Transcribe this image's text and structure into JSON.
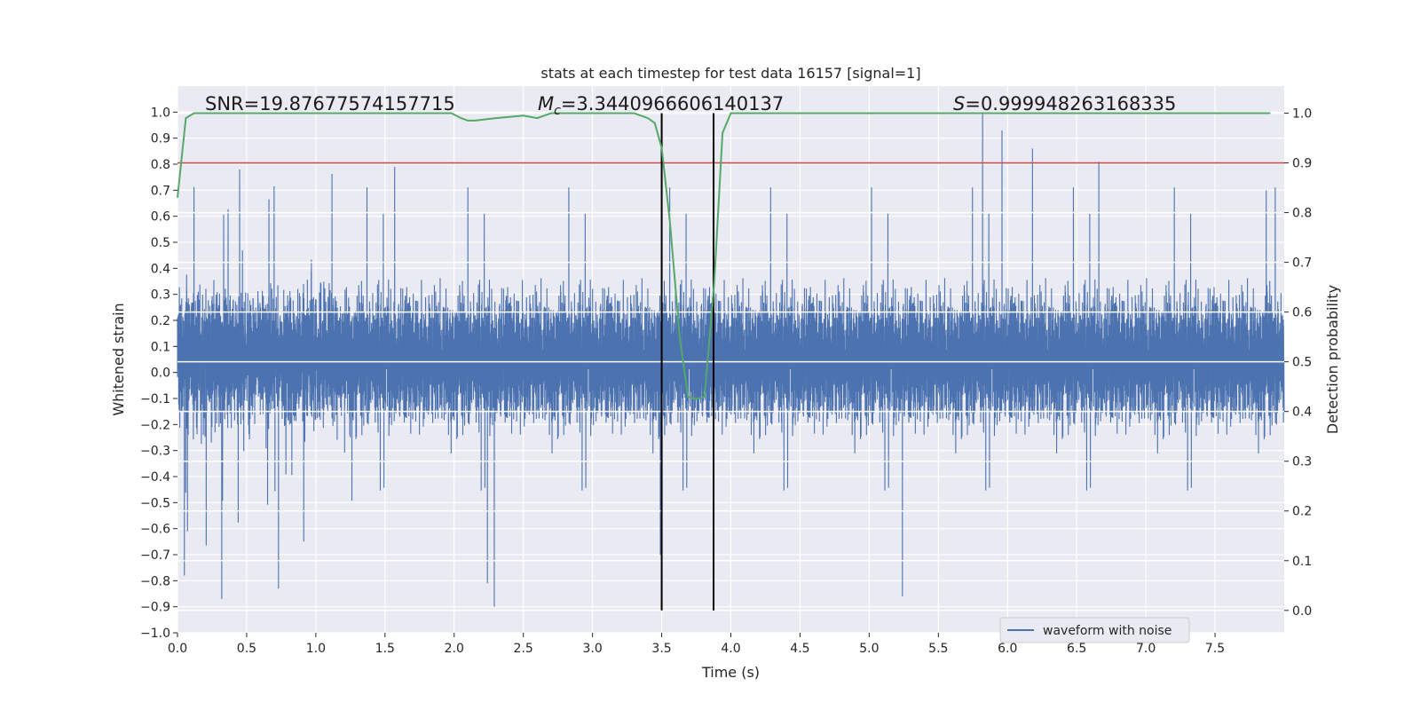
{
  "chart_data": {
    "type": "line",
    "title": "stats at each timestep for test data 16157 [signal=1]",
    "xlabel": "Time (s)",
    "ylabel": "Whitened strain",
    "y2label": "Detection probability",
    "xlim": [
      0.0,
      8.0
    ],
    "ylim": [
      -1.0,
      1.1
    ],
    "y2lim": [
      -0.045,
      1.0545
    ],
    "x_ticks": [
      "0.0",
      "0.5",
      "1.0",
      "1.5",
      "2.0",
      "2.5",
      "3.0",
      "3.5",
      "4.0",
      "4.5",
      "5.0",
      "5.5",
      "6.0",
      "6.5",
      "7.0",
      "7.5"
    ],
    "y_ticks": [
      "1.0",
      "0.9",
      "0.8",
      "0.7",
      "0.6",
      "0.5",
      "0.4",
      "0.3",
      "0.2",
      "0.1",
      "0.0",
      "−0.1",
      "−0.2",
      "−0.3",
      "−0.4",
      "−0.5",
      "−0.6",
      "−0.7",
      "−0.8",
      "−0.9",
      "−1.0"
    ],
    "y2_ticks": [
      "1.0",
      "0.9",
      "0.8",
      "0.7",
      "0.6",
      "0.5",
      "0.4",
      "0.3",
      "0.2",
      "0.1",
      "0.0"
    ],
    "grid": true,
    "legend": {
      "entries": [
        "waveform with noise"
      ],
      "placement": "lower-right"
    },
    "annotations": {
      "snr": "SNR=19.87677574157715",
      "mc_symbol": "M",
      "mc_subscript": "c",
      "mc_value": "=3.3440966606140137",
      "s_symbol": "S",
      "s_value": "=0.999948263168335"
    },
    "threshold_y2": 0.9,
    "vlines_x": [
      3.5,
      3.875
    ],
    "colors": {
      "waveform": "#4c72b0",
      "probability": "#55a868",
      "threshold": "#c44e52",
      "vlines": "#000000",
      "background": "#eaeaf2",
      "grid": "#ffffff"
    },
    "series": [
      {
        "name": "waveform with noise",
        "kind": "noise",
        "envelope": {
          "sample_rate_hz": 2048,
          "dense_band": [
            -0.3,
            0.42
          ],
          "max_peak": 1.0,
          "min_trough": -0.9,
          "notable_peaks": [
            [
              1.57,
              0.79
            ],
            [
              5.82,
              1.0
            ],
            [
              5.96,
              0.93
            ],
            [
              6.18,
              0.86
            ],
            [
              6.66,
              0.81
            ],
            [
              7.87,
              0.7
            ]
          ],
          "notable_troughs": [
            [
              0.05,
              -0.78
            ],
            [
              0.32,
              -0.87
            ],
            [
              0.73,
              -0.83
            ],
            [
              2.24,
              -0.81
            ],
            [
              2.29,
              -0.9
            ],
            [
              3.49,
              -0.7
            ],
            [
              5.24,
              -0.86
            ]
          ]
        }
      },
      {
        "name": "",
        "kind": "probability",
        "x": [
          0.0,
          0.06,
          0.12,
          0.5,
          1.0,
          1.5,
          1.98,
          2.05,
          2.1,
          2.15,
          2.3,
          2.5,
          2.6,
          2.7,
          3.0,
          3.3,
          3.4,
          3.45,
          3.5,
          3.56,
          3.63,
          3.69,
          3.75,
          3.81,
          3.88,
          3.94,
          4.0,
          4.2,
          4.5,
          5.0,
          6.0,
          7.0,
          7.9
        ],
        "y": [
          0.83,
          0.99,
          1.0,
          1.0,
          1.0,
          1.0,
          1.0,
          0.99,
          0.985,
          0.985,
          0.99,
          0.995,
          0.99,
          1.0,
          1.0,
          1.0,
          0.99,
          0.98,
          0.93,
          0.78,
          0.55,
          0.43,
          0.425,
          0.43,
          0.66,
          0.96,
          1.0,
          1.0,
          1.0,
          1.0,
          1.0,
          1.0,
          1.0
        ]
      }
    ]
  }
}
